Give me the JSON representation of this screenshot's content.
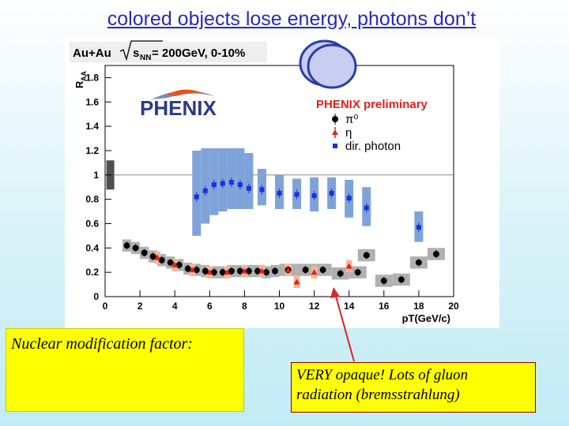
{
  "slide": {
    "title": "colored objects lose energy, photons don’t",
    "note_left": "Nuclear modification factor:",
    "note_right_line1": "VERY opaque! Lots of gluon",
    "note_right_line2": "radiation (bremsstrahlung)"
  },
  "chart_data": {
    "type": "scatter",
    "title_parts": {
      "system": "Au+Au",
      "sqrt_label": "s",
      "sqrt_sub": "NN",
      "rest": " = 200GeV, 0-10%"
    },
    "logo_text": "PHENIX",
    "ylabel_main": "R",
    "ylabel_sub": "AA",
    "xlabel": "pT(GeV/c)",
    "xlim": [
      0,
      20
    ],
    "ylim": [
      0,
      1.9
    ],
    "xticks": [
      0,
      2,
      4,
      6,
      8,
      10,
      12,
      14,
      16,
      18,
      20
    ],
    "yticks": [
      0,
      0.2,
      0.4,
      0.6,
      0.8,
      1,
      1.2,
      1.4,
      1.6,
      1.8
    ],
    "ytick_labels": [
      "0",
      "0.2",
      "0.4",
      "0.6",
      "0.8",
      "1",
      "1.2",
      "1.4",
      "1.6",
      "1.8"
    ],
    "reference_line": 1.0,
    "legend": {
      "title": "PHENIX preliminary",
      "entries": [
        {
          "label": "π⁰",
          "marker": "circle",
          "color": "#000000"
        },
        {
          "label": "η",
          "marker": "triangle",
          "color": "#e0201a"
        },
        {
          "label": "dir. photon",
          "marker": "square",
          "color": "#1a30e0"
        }
      ]
    },
    "colors": {
      "photon_band": "#7fa3d8",
      "pi0_band": "#b0b0b0",
      "eta_band": "#f2b898",
      "title_red": "#e0201a"
    },
    "norm_box": {
      "x": 0.3,
      "y_low": 0.88,
      "y_high": 1.12
    },
    "series": [
      {
        "name": "dir. photon",
        "points": [
          {
            "x": 5.25,
            "y": 0.82,
            "band": [
              0.5,
              1.2
            ]
          },
          {
            "x": 5.75,
            "y": 0.87,
            "band": [
              0.6,
              1.22
            ]
          },
          {
            "x": 6.25,
            "y": 0.92,
            "band": [
              0.67,
              1.22
            ]
          },
          {
            "x": 6.75,
            "y": 0.93,
            "band": [
              0.7,
              1.22
            ]
          },
          {
            "x": 7.25,
            "y": 0.94,
            "band": [
              0.72,
              1.22
            ]
          },
          {
            "x": 7.75,
            "y": 0.92,
            "band": [
              0.72,
              1.22
            ]
          },
          {
            "x": 8.25,
            "y": 0.89,
            "band": [
              0.72,
              1.18
            ]
          },
          {
            "x": 9.0,
            "y": 0.88,
            "band": [
              0.75,
              1.05
            ]
          },
          {
            "x": 10.0,
            "y": 0.85,
            "band": [
              0.72,
              1.0
            ]
          },
          {
            "x": 11.0,
            "y": 0.84,
            "band": [
              0.72,
              0.97
            ]
          },
          {
            "x": 12.0,
            "y": 0.83,
            "band": [
              0.7,
              0.98
            ]
          },
          {
            "x": 13.0,
            "y": 0.85,
            "band": [
              0.72,
              0.98
            ]
          },
          {
            "x": 14.0,
            "y": 0.81,
            "band": [
              0.65,
              0.96
            ]
          },
          {
            "x": 15.0,
            "y": 0.73,
            "band": [
              0.58,
              0.9
            ]
          },
          {
            "x": 18.0,
            "y": 0.57,
            "band": [
              0.45,
              0.7
            ]
          }
        ]
      },
      {
        "name": "pi0",
        "points": [
          {
            "x": 1.25,
            "y": 0.42
          },
          {
            "x": 1.75,
            "y": 0.4
          },
          {
            "x": 2.25,
            "y": 0.36
          },
          {
            "x": 2.75,
            "y": 0.33
          },
          {
            "x": 3.25,
            "y": 0.3
          },
          {
            "x": 3.75,
            "y": 0.28
          },
          {
            "x": 4.25,
            "y": 0.26
          },
          {
            "x": 4.75,
            "y": 0.23
          },
          {
            "x": 5.25,
            "y": 0.22
          },
          {
            "x": 5.75,
            "y": 0.21
          },
          {
            "x": 6.25,
            "y": 0.2
          },
          {
            "x": 6.75,
            "y": 0.2
          },
          {
            "x": 7.25,
            "y": 0.21
          },
          {
            "x": 7.75,
            "y": 0.21
          },
          {
            "x": 8.25,
            "y": 0.21
          },
          {
            "x": 8.75,
            "y": 0.21
          },
          {
            "x": 9.25,
            "y": 0.2
          },
          {
            "x": 9.75,
            "y": 0.21
          },
          {
            "x": 10.5,
            "y": 0.22
          },
          {
            "x": 11.5,
            "y": 0.22
          },
          {
            "x": 12.5,
            "y": 0.22
          },
          {
            "x": 13.5,
            "y": 0.19
          },
          {
            "x": 14.5,
            "y": 0.2
          },
          {
            "x": 15.0,
            "y": 0.34
          },
          {
            "x": 16.0,
            "y": 0.13
          },
          {
            "x": 17.0,
            "y": 0.14
          },
          {
            "x": 18.0,
            "y": 0.28
          },
          {
            "x": 19.0,
            "y": 0.35
          }
        ]
      },
      {
        "name": "eta",
        "points": [
          {
            "x": 3.0,
            "y": 0.32
          },
          {
            "x": 4.0,
            "y": 0.26
          },
          {
            "x": 5.0,
            "y": 0.22
          },
          {
            "x": 6.0,
            "y": 0.2
          },
          {
            "x": 7.0,
            "y": 0.2
          },
          {
            "x": 8.0,
            "y": 0.21
          },
          {
            "x": 9.0,
            "y": 0.21
          },
          {
            "x": 10.5,
            "y": 0.22
          },
          {
            "x": 11.0,
            "y": 0.12
          },
          {
            "x": 12.0,
            "y": 0.2
          },
          {
            "x": 14.0,
            "y": 0.25
          }
        ]
      }
    ]
  }
}
